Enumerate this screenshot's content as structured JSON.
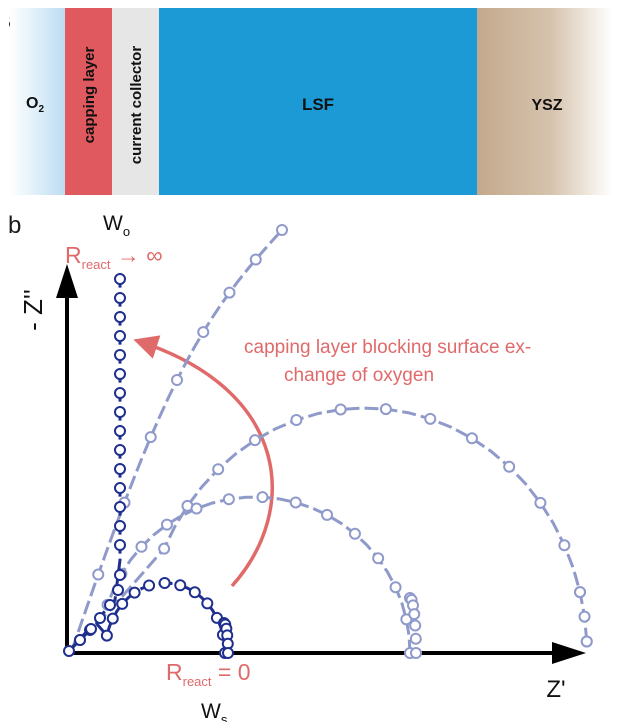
{
  "panel_a": {
    "letter": "a",
    "layers": [
      {
        "key": "o2",
        "label": "O",
        "sub": "2"
      },
      {
        "key": "capping",
        "label": "capping layer"
      },
      {
        "key": "collector",
        "label": "current collector"
      },
      {
        "key": "lsf",
        "label": "LSF"
      },
      {
        "key": "ysz",
        "label": "YSZ"
      }
    ]
  },
  "panel_b": {
    "letter": "b",
    "y_axis": "- Z''",
    "x_axis": "Z'",
    "top_label": {
      "main": "W",
      "sub": "o"
    },
    "bottom_label": {
      "main": "W",
      "sub": "s"
    },
    "r_inf": {
      "main": "R",
      "sub": "react",
      "rest": " → ∞"
    },
    "r_zero": {
      "main": "R",
      "sub": "react",
      "rest": " = 0"
    },
    "annotation_line1": "capping layer blocking surface ex-",
    "annotation_line2": "change of oxygen"
  },
  "colors": {
    "dark_series": "#1f2f8e",
    "light_series": "#8f9acb",
    "arrow": "#e06a6a",
    "capping_layer": "#e0595f",
    "current_collector": "#e6e6e6",
    "lsf": "#1b9ad6",
    "ysz": "#c9b197",
    "o2": "#bcdcf2"
  },
  "chart_data": {
    "type": "scatter",
    "title": "",
    "xlabel": "Z'",
    "ylabel": "- Z''",
    "note": "schematic impedance curves without numeric scale",
    "series": [
      {
        "name": "R_react = 0"
      },
      {},
      {},
      {},
      {
        "name": "R_react → ∞"
      }
    ]
  }
}
